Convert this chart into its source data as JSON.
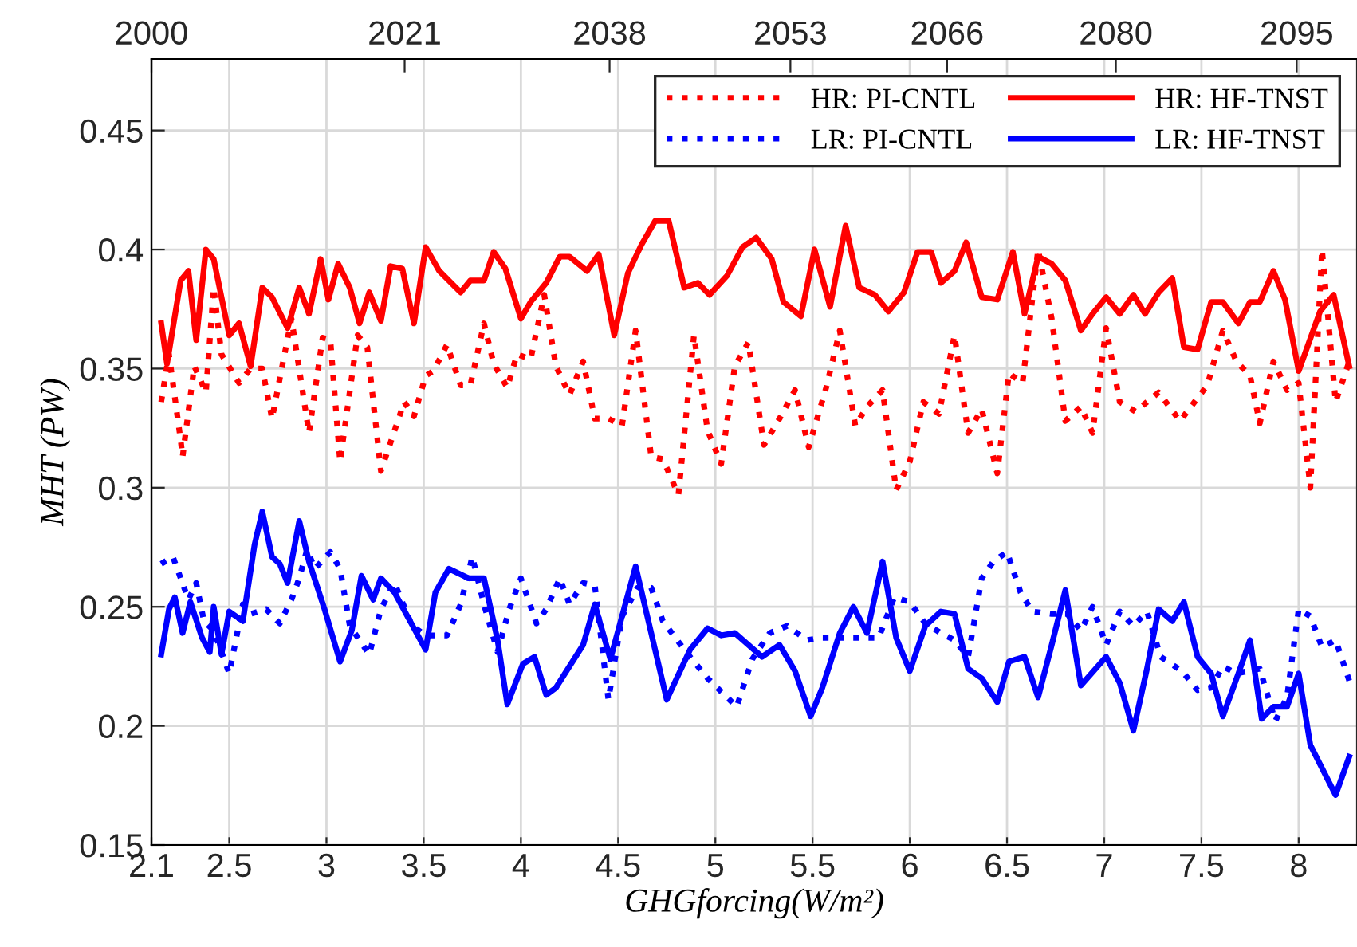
{
  "chart_data": {
    "type": "line",
    "xlabel": "GHGforcing(W/m²)",
    "ylabel": "MHT (PW)",
    "xlim": [
      2.1,
      8.3
    ],
    "ylim": [
      0.15,
      0.48
    ],
    "xticks": [
      2.1,
      2.5,
      3,
      3.5,
      4,
      4.5,
      5,
      5.5,
      6,
      6.5,
      7,
      7.5,
      8
    ],
    "yticks": [
      0.15,
      0.2,
      0.25,
      0.3,
      0.35,
      0.4,
      0.45
    ],
    "x2lim": [
      2000,
      2100
    ],
    "x2ticks": [
      2000,
      2021,
      2038,
      2053,
      2066,
      2080,
      2095
    ],
    "grid": true,
    "legend": "top right",
    "marker": "none",
    "series": [
      {
        "name": "HR: PI-CNTL",
        "color": "#ff0000",
        "line_style": "dotted",
        "x": [
          2.15,
          2.19,
          2.25,
          2.26,
          2.32,
          2.38,
          2.42,
          2.46,
          2.55,
          2.61,
          2.67,
          2.72,
          2.82,
          2.91,
          2.98,
          3.02,
          3.07,
          3.16,
          3.21,
          3.28,
          3.4,
          3.45,
          3.51,
          3.55,
          3.62,
          3.69,
          3.74,
          3.81,
          3.86,
          3.93,
          3.98,
          4.05,
          4.12,
          4.18,
          4.25,
          4.32,
          4.38,
          4.45,
          4.52,
          4.59,
          4.67,
          4.73,
          4.81,
          4.89,
          4.96,
          5.03,
          5.1,
          5.17,
          5.25,
          5.33,
          5.41,
          5.48,
          5.57,
          5.64,
          5.72,
          5.78,
          5.86,
          5.93,
          6.0,
          6.07,
          6.15,
          6.23,
          6.3,
          6.37,
          6.45,
          6.51,
          6.58,
          6.66,
          6.73,
          6.8,
          6.88,
          6.94,
          7.01,
          7.08,
          7.16,
          7.28,
          7.39,
          7.53,
          7.61,
          7.68,
          7.75,
          7.8,
          7.87,
          7.94,
          8.0,
          8.06,
          8.12,
          8.19,
          8.26
        ],
        "values": [
          0.336,
          0.356,
          0.32,
          0.313,
          0.351,
          0.34,
          0.384,
          0.356,
          0.344,
          0.35,
          0.35,
          0.329,
          0.371,
          0.323,
          0.363,
          0.362,
          0.311,
          0.364,
          0.359,
          0.307,
          0.336,
          0.33,
          0.347,
          0.349,
          0.36,
          0.343,
          0.343,
          0.369,
          0.352,
          0.342,
          0.356,
          0.354,
          0.381,
          0.351,
          0.339,
          0.353,
          0.329,
          0.329,
          0.326,
          0.366,
          0.313,
          0.312,
          0.297,
          0.364,
          0.324,
          0.31,
          0.351,
          0.361,
          0.318,
          0.329,
          0.341,
          0.317,
          0.342,
          0.366,
          0.326,
          0.334,
          0.341,
          0.299,
          0.311,
          0.336,
          0.331,
          0.364,
          0.323,
          0.333,
          0.306,
          0.348,
          0.344,
          0.4,
          0.371,
          0.328,
          0.334,
          0.323,
          0.367,
          0.336,
          0.332,
          0.34,
          0.328,
          0.343,
          0.366,
          0.353,
          0.347,
          0.327,
          0.353,
          0.341,
          0.344,
          0.3,
          0.4,
          0.336,
          0.353
        ]
      },
      {
        "name": "LR: PI-CNTL",
        "color": "#0000ff",
        "line_style": "dotted",
        "x": [
          2.15,
          2.21,
          2.25,
          2.29,
          2.33,
          2.37,
          2.42,
          2.5,
          2.57,
          2.61,
          2.69,
          2.76,
          2.82,
          2.86,
          2.9,
          2.94,
          3.02,
          3.07,
          3.12,
          3.22,
          3.28,
          3.35,
          3.44,
          3.51,
          3.62,
          3.69,
          3.75,
          3.81,
          3.88,
          3.94,
          4.0,
          4.08,
          4.13,
          4.2,
          4.25,
          4.32,
          4.38,
          4.45,
          4.52,
          4.6,
          4.67,
          4.73,
          4.85,
          4.96,
          5.11,
          5.19,
          5.28,
          5.37,
          5.47,
          5.55,
          5.7,
          5.84,
          5.92,
          6.0,
          6.08,
          6.16,
          6.23,
          6.3,
          6.37,
          6.43,
          6.5,
          6.57,
          6.63,
          6.73,
          6.81,
          6.88,
          6.94,
          7.01,
          7.08,
          7.15,
          7.22,
          7.29,
          7.4,
          7.48,
          7.55,
          7.61,
          7.68,
          7.8,
          7.88,
          7.94,
          8.0,
          8.06,
          8.12,
          8.19,
          8.26
        ],
        "values": [
          0.268,
          0.271,
          0.262,
          0.253,
          0.26,
          0.244,
          0.24,
          0.222,
          0.251,
          0.247,
          0.249,
          0.243,
          0.253,
          0.262,
          0.274,
          0.266,
          0.273,
          0.266,
          0.242,
          0.23,
          0.249,
          0.26,
          0.242,
          0.238,
          0.238,
          0.251,
          0.271,
          0.251,
          0.231,
          0.249,
          0.262,
          0.243,
          0.249,
          0.262,
          0.251,
          0.26,
          0.259,
          0.211,
          0.246,
          0.258,
          0.258,
          0.244,
          0.231,
          0.22,
          0.208,
          0.228,
          0.239,
          0.242,
          0.236,
          0.237,
          0.237,
          0.237,
          0.254,
          0.252,
          0.243,
          0.239,
          0.236,
          0.229,
          0.262,
          0.269,
          0.273,
          0.256,
          0.248,
          0.247,
          0.247,
          0.24,
          0.25,
          0.234,
          0.248,
          0.242,
          0.248,
          0.229,
          0.223,
          0.215,
          0.216,
          0.225,
          0.222,
          0.224,
          0.202,
          0.212,
          0.249,
          0.246,
          0.233,
          0.236,
          0.219
        ]
      },
      {
        "name": "HR: HF-TNST",
        "color": "#ff0000",
        "line_style": "solid",
        "x": [
          2.15,
          2.18,
          2.25,
          2.29,
          2.33,
          2.38,
          2.42,
          2.5,
          2.55,
          2.61,
          2.67,
          2.72,
          2.8,
          2.86,
          2.91,
          2.97,
          3.01,
          3.06,
          3.12,
          3.17,
          3.22,
          3.28,
          3.33,
          3.39,
          3.45,
          3.51,
          3.58,
          3.69,
          3.74,
          3.81,
          3.86,
          3.92,
          4.0,
          4.05,
          4.13,
          4.2,
          4.25,
          4.34,
          4.4,
          4.48,
          4.55,
          4.62,
          4.69,
          4.76,
          4.84,
          4.91,
          4.97,
          5.06,
          5.14,
          5.21,
          5.29,
          5.35,
          5.44,
          5.51,
          5.59,
          5.67,
          5.74,
          5.82,
          5.89,
          5.97,
          6.04,
          6.11,
          6.16,
          6.23,
          6.29,
          6.37,
          6.45,
          6.53,
          6.59,
          6.66,
          6.73,
          6.8,
          6.88,
          6.94,
          7.01,
          7.08,
          7.15,
          7.21,
          7.28,
          7.35,
          7.41,
          7.48,
          7.55,
          7.61,
          7.69,
          7.75,
          7.8,
          7.87,
          7.93,
          8.0,
          8.11,
          8.18,
          8.26
        ],
        "values": [
          0.369,
          0.352,
          0.387,
          0.391,
          0.362,
          0.4,
          0.396,
          0.364,
          0.369,
          0.351,
          0.384,
          0.38,
          0.367,
          0.384,
          0.373,
          0.396,
          0.379,
          0.394,
          0.384,
          0.369,
          0.382,
          0.37,
          0.393,
          0.392,
          0.369,
          0.401,
          0.391,
          0.382,
          0.387,
          0.387,
          0.399,
          0.392,
          0.371,
          0.378,
          0.386,
          0.397,
          0.397,
          0.391,
          0.398,
          0.364,
          0.39,
          0.402,
          0.412,
          0.412,
          0.384,
          0.386,
          0.381,
          0.389,
          0.401,
          0.405,
          0.396,
          0.378,
          0.372,
          0.4,
          0.376,
          0.41,
          0.384,
          0.381,
          0.374,
          0.382,
          0.399,
          0.399,
          0.386,
          0.391,
          0.403,
          0.38,
          0.379,
          0.399,
          0.373,
          0.397,
          0.394,
          0.387,
          0.366,
          0.373,
          0.38,
          0.373,
          0.381,
          0.373,
          0.382,
          0.388,
          0.359,
          0.358,
          0.378,
          0.378,
          0.369,
          0.378,
          0.378,
          0.391,
          0.379,
          0.349,
          0.374,
          0.381,
          0.351
        ]
      },
      {
        "name": "LR: HF-TNST",
        "color": "#0000ff",
        "line_style": "solid",
        "x": [
          2.15,
          2.19,
          2.22,
          2.26,
          2.3,
          2.36,
          2.4,
          2.42,
          2.46,
          2.5,
          2.57,
          2.63,
          2.67,
          2.72,
          2.76,
          2.8,
          2.86,
          2.91,
          2.99,
          3.07,
          3.13,
          3.18,
          3.24,
          3.28,
          3.35,
          3.45,
          3.51,
          3.56,
          3.63,
          3.73,
          3.81,
          3.88,
          3.93,
          4.01,
          4.07,
          4.13,
          4.18,
          4.32,
          4.38,
          4.46,
          4.59,
          4.75,
          4.87,
          4.96,
          5.03,
          5.1,
          5.24,
          5.33,
          5.41,
          5.49,
          5.55,
          5.64,
          5.71,
          5.78,
          5.86,
          5.93,
          6.0,
          6.08,
          6.16,
          6.23,
          6.3,
          6.37,
          6.45,
          6.51,
          6.59,
          6.66,
          6.73,
          6.8,
          6.88,
          7.01,
          7.08,
          7.15,
          7.22,
          7.28,
          7.35,
          7.41,
          7.48,
          7.55,
          7.61,
          7.69,
          7.75,
          7.81,
          7.87,
          7.94,
          8.0,
          8.06,
          8.19,
          8.26
        ],
        "values": [
          0.23,
          0.249,
          0.254,
          0.239,
          0.252,
          0.237,
          0.231,
          0.25,
          0.23,
          0.248,
          0.244,
          0.276,
          0.29,
          0.271,
          0.268,
          0.26,
          0.286,
          0.269,
          0.249,
          0.227,
          0.24,
          0.263,
          0.253,
          0.262,
          0.256,
          0.241,
          0.232,
          0.256,
          0.266,
          0.262,
          0.262,
          0.236,
          0.209,
          0.226,
          0.229,
          0.213,
          0.216,
          0.234,
          0.251,
          0.228,
          0.267,
          0.211,
          0.232,
          0.241,
          0.238,
          0.239,
          0.229,
          0.234,
          0.223,
          0.204,
          0.216,
          0.239,
          0.25,
          0.239,
          0.269,
          0.237,
          0.223,
          0.242,
          0.248,
          0.247,
          0.224,
          0.22,
          0.21,
          0.227,
          0.229,
          0.212,
          0.234,
          0.257,
          0.217,
          0.229,
          0.218,
          0.198,
          0.224,
          0.249,
          0.244,
          0.252,
          0.229,
          0.222,
          0.204,
          0.222,
          0.236,
          0.203,
          0.208,
          0.208,
          0.222,
          0.192,
          0.171,
          0.187
        ]
      }
    ]
  }
}
